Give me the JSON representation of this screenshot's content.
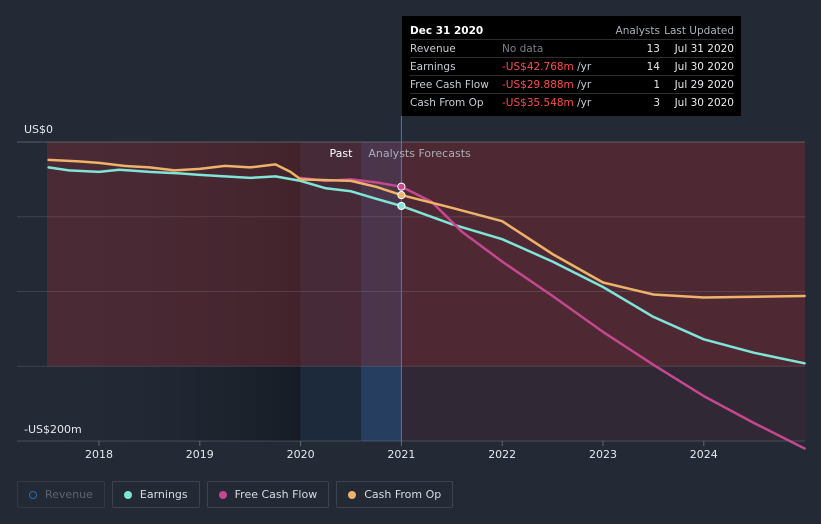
{
  "chart_data": {
    "type": "line",
    "yaxis": {
      "top_label": "US$0",
      "bottom_label": "-US$200m",
      "ylim": [
        -200,
        0
      ]
    },
    "xaxis": {
      "ticks": [
        "2018",
        "2019",
        "2020",
        "2021",
        "2022",
        "2023",
        "2024"
      ]
    },
    "regions": {
      "past_label": "Past",
      "forecast_label": "Analysts Forecasts",
      "divider_date": "Dec 31 2020"
    },
    "series": [
      {
        "name": "Earnings",
        "color": "#7ee5d7",
        "points": [
          [
            2017.5,
            -17
          ],
          [
            2017.7,
            -19
          ],
          [
            2018.0,
            -20
          ],
          [
            2018.2,
            -18.5
          ],
          [
            2018.5,
            -20
          ],
          [
            2018.8,
            -21
          ],
          [
            2019.0,
            -22
          ],
          [
            2019.5,
            -24
          ],
          [
            2019.75,
            -23
          ],
          [
            2020.0,
            -26
          ],
          [
            2020.25,
            -31
          ],
          [
            2020.5,
            -33
          ],
          [
            2020.75,
            -38
          ],
          [
            2021.0,
            -42.768
          ],
          [
            2021.5,
            -55
          ],
          [
            2022.0,
            -65
          ],
          [
            2022.5,
            -80
          ],
          [
            2023.0,
            -97
          ],
          [
            2023.5,
            -117
          ],
          [
            2024.0,
            -132
          ],
          [
            2024.5,
            -141
          ],
          [
            2025.0,
            -148
          ]
        ]
      },
      {
        "name": "Free Cash Flow",
        "color": "#c5478f",
        "points": [
          [
            2020.0,
            -24
          ],
          [
            2020.25,
            -26
          ],
          [
            2020.5,
            -25
          ],
          [
            2020.75,
            -27
          ],
          [
            2021.0,
            -29.888
          ],
          [
            2021.3,
            -40
          ],
          [
            2021.6,
            -60
          ],
          [
            2022.0,
            -80
          ],
          [
            2022.5,
            -103
          ],
          [
            2023.0,
            -127
          ],
          [
            2023.5,
            -149
          ],
          [
            2024.0,
            -170
          ],
          [
            2024.5,
            -188
          ],
          [
            2025.0,
            -205
          ]
        ]
      },
      {
        "name": "Cash From Op",
        "color": "#edb36a",
        "points": [
          [
            2017.5,
            -12
          ],
          [
            2017.8,
            -13
          ],
          [
            2018.0,
            -14
          ],
          [
            2018.25,
            -16
          ],
          [
            2018.5,
            -17
          ],
          [
            2018.75,
            -19
          ],
          [
            2019.0,
            -18
          ],
          [
            2019.25,
            -16
          ],
          [
            2019.5,
            -17
          ],
          [
            2019.75,
            -15
          ],
          [
            2019.9,
            -20
          ],
          [
            2020.0,
            -25
          ],
          [
            2020.5,
            -26
          ],
          [
            2020.75,
            -30
          ],
          [
            2021.0,
            -35.548
          ],
          [
            2021.5,
            -44
          ],
          [
            2022.0,
            -53
          ],
          [
            2022.5,
            -75
          ],
          [
            2023.0,
            -94
          ],
          [
            2023.5,
            -102
          ],
          [
            2024.0,
            -104
          ],
          [
            2024.5,
            -103.5
          ],
          [
            2025.0,
            -103
          ]
        ]
      }
    ]
  },
  "tooltip": {
    "date": "Dec 31 2020",
    "headers": {
      "analysts": "Analysts",
      "last_updated": "Last Updated"
    },
    "rows": [
      {
        "label": "Revenue",
        "value": "No data",
        "unit": "",
        "analysts": "13",
        "updated": "Jul 31 2020"
      },
      {
        "label": "Earnings",
        "value": "-US$42.768m",
        "unit": " /yr",
        "analysts": "14",
        "updated": "Jul 30 2020"
      },
      {
        "label": "Free Cash Flow",
        "value": "-US$29.888m",
        "unit": " /yr",
        "analysts": "1",
        "updated": "Jul 29 2020"
      },
      {
        "label": "Cash From Op",
        "value": "-US$35.548m",
        "unit": " /yr",
        "analysts": "3",
        "updated": "Jul 30 2020"
      }
    ]
  },
  "legend": [
    {
      "label": "Revenue",
      "color": "#2d6ea8",
      "active": false
    },
    {
      "label": "Earnings",
      "color": "#7ee5d7",
      "active": true
    },
    {
      "label": "Free Cash Flow",
      "color": "#c5478f",
      "active": true
    },
    {
      "label": "Cash From Op",
      "color": "#edb36a",
      "active": true
    }
  ]
}
